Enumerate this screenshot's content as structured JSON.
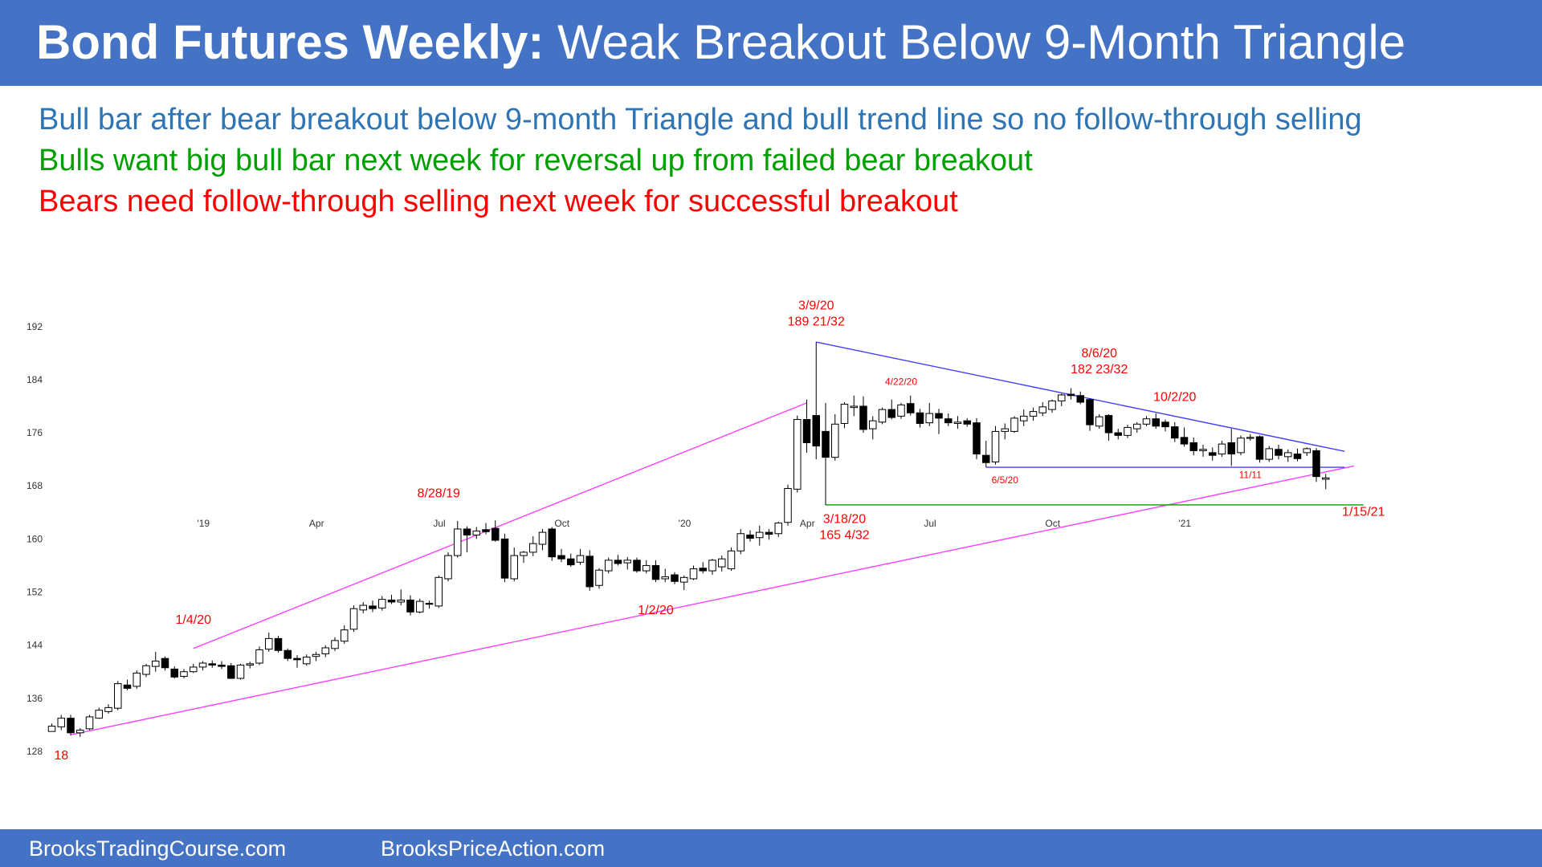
{
  "header": {
    "title_bold": "Bond Futures Weekly:",
    "title_rest": "Weak Breakout Below 9-Month Triangle",
    "background": "#4472c4"
  },
  "commentary": [
    {
      "text": "Bull bar after bear breakout below 9-month Triangle and bull trend line so no follow-through selling",
      "color": "#2e75b6"
    },
    {
      "text": "Bulls want big bull bar next week for reversal up from failed bear breakout",
      "color": "#00a000"
    },
    {
      "text": "Bears need follow-through selling next week for successful breakout",
      "color": "#ff0000"
    }
  ],
  "footer": {
    "left": "BrooksTradingCourse.com",
    "right": "BrooksPriceAction.com",
    "background": "#4472c4"
  },
  "chart_data": {
    "type": "candlestick",
    "title": "",
    "xlabel": "",
    "ylabel": "",
    "ylim": [
      126,
      193
    ],
    "grid": false,
    "x_ticks": [
      "'19",
      "Apr",
      "Jul",
      "Oct",
      "'20",
      "Apr",
      "Jul",
      "Oct",
      "'21"
    ],
    "y_ticks": [
      "192",
      "184",
      "176",
      "168",
      "160",
      "152",
      "144",
      "136",
      "128"
    ],
    "colors": {
      "bull": "#ffffff",
      "bear": "#000000",
      "pink": "#ff40ff",
      "blue": "#4040ff",
      "green": "#00a000",
      "label": "#ff0000"
    },
    "candles": [
      [
        131.0,
        132.2,
        131.0,
        131.8
      ],
      [
        131.7,
        133.5,
        131.2,
        133.0
      ],
      [
        133.0,
        133.5,
        130.4,
        130.8
      ],
      [
        130.8,
        131.5,
        130.2,
        131.2
      ],
      [
        131.4,
        133.5,
        131.2,
        133.2
      ],
      [
        133.0,
        134.6,
        132.9,
        134.2
      ],
      [
        134.0,
        135.1,
        133.7,
        134.6
      ],
      [
        134.5,
        138.6,
        134.2,
        138.2
      ],
      [
        138.0,
        138.8,
        137.2,
        137.5
      ],
      [
        137.8,
        140.2,
        137.4,
        139.8
      ],
      [
        139.6,
        141.2,
        139.2,
        140.9
      ],
      [
        140.8,
        143.0,
        140.0,
        141.6
      ],
      [
        142.0,
        142.3,
        140.2,
        140.6
      ],
      [
        140.4,
        140.8,
        139.0,
        139.2
      ],
      [
        139.3,
        140.4,
        139.0,
        140.0
      ],
      [
        140.0,
        141.2,
        139.8,
        140.7
      ],
      [
        140.7,
        141.6,
        140.2,
        141.3
      ],
      [
        141.2,
        141.7,
        140.6,
        141.0
      ],
      [
        141.0,
        141.6,
        140.4,
        140.8
      ],
      [
        140.9,
        141.3,
        138.9,
        139.0
      ],
      [
        139.0,
        141.2,
        138.8,
        141.0
      ],
      [
        141.0,
        141.5,
        140.5,
        141.2
      ],
      [
        141.3,
        143.8,
        141.0,
        143.3
      ],
      [
        143.4,
        145.9,
        143.0,
        145.0
      ],
      [
        145.0,
        145.4,
        142.9,
        143.2
      ],
      [
        143.2,
        143.5,
        141.6,
        142.0
      ],
      [
        142.0,
        142.5,
        140.6,
        141.8
      ],
      [
        141.2,
        142.6,
        140.9,
        142.2
      ],
      [
        142.3,
        143.0,
        141.6,
        142.6
      ],
      [
        142.7,
        144.0,
        142.2,
        143.6
      ],
      [
        143.5,
        145.2,
        143.1,
        144.7
      ],
      [
        144.6,
        147.0,
        144.2,
        146.3
      ],
      [
        146.4,
        150.0,
        146.0,
        149.5
      ],
      [
        149.3,
        150.5,
        148.8,
        150.0
      ],
      [
        149.9,
        150.7,
        149.0,
        149.5
      ],
      [
        149.6,
        151.4,
        149.2,
        150.9
      ],
      [
        150.8,
        151.6,
        150.2,
        150.5
      ],
      [
        150.5,
        152.4,
        150.0,
        150.8
      ],
      [
        150.8,
        151.5,
        148.5,
        149.0
      ],
      [
        149.0,
        151.0,
        148.8,
        150.6
      ],
      [
        150.3,
        150.7,
        149.5,
        150.2
      ],
      [
        149.9,
        154.5,
        149.6,
        154.2
      ],
      [
        154.0,
        158.0,
        153.6,
        157.5
      ],
      [
        157.5,
        162.7,
        157.2,
        161.5
      ],
      [
        161.5,
        161.9,
        158.0,
        160.6
      ],
      [
        160.6,
        161.8,
        160.0,
        161.2
      ],
      [
        161.4,
        162.4,
        160.7,
        161.1
      ],
      [
        161.6,
        162.8,
        159.6,
        159.8
      ],
      [
        160.0,
        160.8,
        153.5,
        154.1
      ],
      [
        154.0,
        158.7,
        153.6,
        157.5
      ],
      [
        157.5,
        158.2,
        156.4,
        158.0
      ],
      [
        158.0,
        160.4,
        157.4,
        159.3
      ],
      [
        159.2,
        161.5,
        158.3,
        161.0
      ],
      [
        161.5,
        161.8,
        156.7,
        157.3
      ],
      [
        157.5,
        158.5,
        156.5,
        157.0
      ],
      [
        157.0,
        157.8,
        155.8,
        156.1
      ],
      [
        156.5,
        158.5,
        156.1,
        157.5
      ],
      [
        157.4,
        158.3,
        152.2,
        152.8
      ],
      [
        153.0,
        155.6,
        152.5,
        155.3
      ],
      [
        155.2,
        157.2,
        154.8,
        156.8
      ],
      [
        156.8,
        157.6,
        156.0,
        156.3
      ],
      [
        156.4,
        157.3,
        155.4,
        156.8
      ],
      [
        156.8,
        157.2,
        154.9,
        155.2
      ],
      [
        155.2,
        156.8,
        154.8,
        156.0
      ],
      [
        156.0,
        156.8,
        153.5,
        153.9
      ],
      [
        154.0,
        155.5,
        153.5,
        154.3
      ],
      [
        154.6,
        155.0,
        153.2,
        153.6
      ],
      [
        153.5,
        154.5,
        152.3,
        154.2
      ],
      [
        154.0,
        156.0,
        153.8,
        155.5
      ],
      [
        155.6,
        156.5,
        154.8,
        155.2
      ],
      [
        155.2,
        157.0,
        154.6,
        156.8
      ],
      [
        155.8,
        157.5,
        155.1,
        157.0
      ],
      [
        155.5,
        158.7,
        155.2,
        158.2
      ],
      [
        158.2,
        161.5,
        157.7,
        160.8
      ],
      [
        160.6,
        161.3,
        159.6,
        160.1
      ],
      [
        160.2,
        162.0,
        159.0,
        161.0
      ],
      [
        161.0,
        161.5,
        159.9,
        160.7
      ],
      [
        160.8,
        162.6,
        160.3,
        162.4
      ],
      [
        162.5,
        168.2,
        162.0,
        167.6
      ],
      [
        167.5,
        178.6,
        167.0,
        178.0
      ],
      [
        178.0,
        181.0,
        173.0,
        174.5
      ],
      [
        178.6,
        189.66,
        172.0,
        174.0
      ],
      [
        176.2,
        180.5,
        165.13,
        172.3
      ],
      [
        172.3,
        178.8,
        171.8,
        177.3
      ],
      [
        177.4,
        180.6,
        176.7,
        180.3
      ],
      [
        179.8,
        181.6,
        178.5,
        180.0
      ],
      [
        180.0,
        181.5,
        176.0,
        176.5
      ],
      [
        176.6,
        178.5,
        175.0,
        177.8
      ],
      [
        177.6,
        179.8,
        177.3,
        179.5
      ],
      [
        179.5,
        181.0,
        178.0,
        178.3
      ],
      [
        178.5,
        180.5,
        178.1,
        180.2
      ],
      [
        180.4,
        181.6,
        178.6,
        179.0
      ],
      [
        179.0,
        179.6,
        176.8,
        177.4
      ],
      [
        177.5,
        180.5,
        177.0,
        178.9
      ],
      [
        178.9,
        179.6,
        175.8,
        178.2
      ],
      [
        178.1,
        178.9,
        177.0,
        177.5
      ],
      [
        177.4,
        178.5,
        176.6,
        177.6
      ],
      [
        177.8,
        178.2,
        176.9,
        177.3
      ],
      [
        177.5,
        178.2,
        172.0,
        172.8
      ],
      [
        172.6,
        174.8,
        170.8,
        171.5
      ],
      [
        171.6,
        177.0,
        171.2,
        176.2
      ],
      [
        176.2,
        177.4,
        175.0,
        176.6
      ],
      [
        176.2,
        178.5,
        176.0,
        178.2
      ],
      [
        177.8,
        179.5,
        177.0,
        178.5
      ],
      [
        178.5,
        179.8,
        177.8,
        179.2
      ],
      [
        179.0,
        180.6,
        178.5,
        179.9
      ],
      [
        179.5,
        181.0,
        179.0,
        180.8
      ],
      [
        180.8,
        181.9,
        180.0,
        181.7
      ],
      [
        181.8,
        182.72,
        181.0,
        181.6
      ],
      [
        181.6,
        182.2,
        180.3,
        180.6
      ],
      [
        181.0,
        181.2,
        176.3,
        177.2
      ],
      [
        177.0,
        178.8,
        176.6,
        178.4
      ],
      [
        178.6,
        178.8,
        174.8,
        176.0
      ],
      [
        176.0,
        176.6,
        175.0,
        175.6
      ],
      [
        175.6,
        177.2,
        175.2,
        176.8
      ],
      [
        176.6,
        177.6,
        176.0,
        177.3
      ],
      [
        177.3,
        178.5,
        177.0,
        178.1
      ],
      [
        178.1,
        178.9,
        176.6,
        177.0
      ],
      [
        177.6,
        178.0,
        176.2,
        176.9
      ],
      [
        176.9,
        177.6,
        174.6,
        175.2
      ],
      [
        175.3,
        176.8,
        173.9,
        174.3
      ],
      [
        174.5,
        175.3,
        172.6,
        173.3
      ],
      [
        173.3,
        174.2,
        172.4,
        173.5
      ],
      [
        173.0,
        173.8,
        171.8,
        172.6
      ],
      [
        172.8,
        174.8,
        172.4,
        174.3
      ],
      [
        174.5,
        176.6,
        171.0,
        172.8
      ],
      [
        173.0,
        175.6,
        172.6,
        175.2
      ],
      [
        175.3,
        175.8,
        174.8,
        175.3
      ],
      [
        175.4,
        175.6,
        171.5,
        172.0
      ],
      [
        172.0,
        174.0,
        171.6,
        173.6
      ],
      [
        173.5,
        174.2,
        172.0,
        172.6
      ],
      [
        172.4,
        173.5,
        171.6,
        173.0
      ],
      [
        172.8,
        173.6,
        171.7,
        172.1
      ],
      [
        173.0,
        173.8,
        172.5,
        173.6
      ],
      [
        173.3,
        173.7,
        168.6,
        169.4
      ],
      [
        169.0,
        169.8,
        167.5,
        169.2
      ]
    ],
    "lines": [
      {
        "name": "bull-trend-line",
        "color": "pink",
        "from": [
          2,
          130.5
        ],
        "to": [
          138,
          171.0
        ]
      },
      {
        "name": "bull-channel-line",
        "color": "pink",
        "from": [
          15,
          143.5
        ],
        "to": [
          80,
          180.5
        ]
      },
      {
        "name": "triangle-upper-line",
        "color": "blue",
        "from": [
          81,
          189.66
        ],
        "to": [
          137,
          173.2
        ]
      },
      {
        "name": "triangle-lower-line",
        "color": "blue",
        "from": [
          99,
          170.8
        ],
        "to": [
          137,
          170.8
        ]
      },
      {
        "name": "march-low-line",
        "color": "green",
        "from": [
          82,
          165.13
        ],
        "to": [
          139,
          165.13
        ]
      }
    ],
    "annotations": [
      {
        "name": "label-18",
        "lines": [
          "18"
        ],
        "i": 1,
        "p": 126.8,
        "size": 16
      },
      {
        "name": "label-1-4-20",
        "lines": [
          "1/4/20"
        ],
        "i": 15,
        "p": 147.2,
        "size": 16
      },
      {
        "name": "label-8-28-19",
        "lines": [
          "8/28/19"
        ],
        "i": 41,
        "p": 166.3,
        "size": 16
      },
      {
        "name": "label-1-2-20",
        "lines": [
          "1/2/20"
        ],
        "i": 64,
        "p": 148.7,
        "size": 16
      },
      {
        "name": "label-3-9-20",
        "lines": [
          "3/9/20",
          "189 21/32"
        ],
        "i": 81,
        "p": 194.6,
        "size": 16
      },
      {
        "name": "label-3-18-20",
        "lines": [
          "3/18/20",
          "165 4/32"
        ],
        "i": 84,
        "p": 162.4,
        "size": 16
      },
      {
        "name": "label-4-22-20",
        "lines": [
          "4/22/20"
        ],
        "i": 90,
        "p": 183.2,
        "size": 12
      },
      {
        "name": "label-6-5-20",
        "lines": [
          "6/5/20"
        ],
        "i": 101,
        "p": 168.4,
        "size": 12
      },
      {
        "name": "label-8-6-20",
        "lines": [
          "8/6/20",
          "182 23/32"
        ],
        "i": 111,
        "p": 187.4,
        "size": 16
      },
      {
        "name": "label-10-2-20",
        "lines": [
          "10/2/20"
        ],
        "i": 119,
        "p": 180.8,
        "size": 16
      },
      {
        "name": "label-11-11",
        "lines": [
          "11/11"
        ],
        "i": 127,
        "p": 169.2,
        "size": 12
      },
      {
        "name": "label-1-15-21",
        "lines": [
          "1/15/21"
        ],
        "i": 139,
        "p": 163.5,
        "size": 16
      }
    ]
  }
}
